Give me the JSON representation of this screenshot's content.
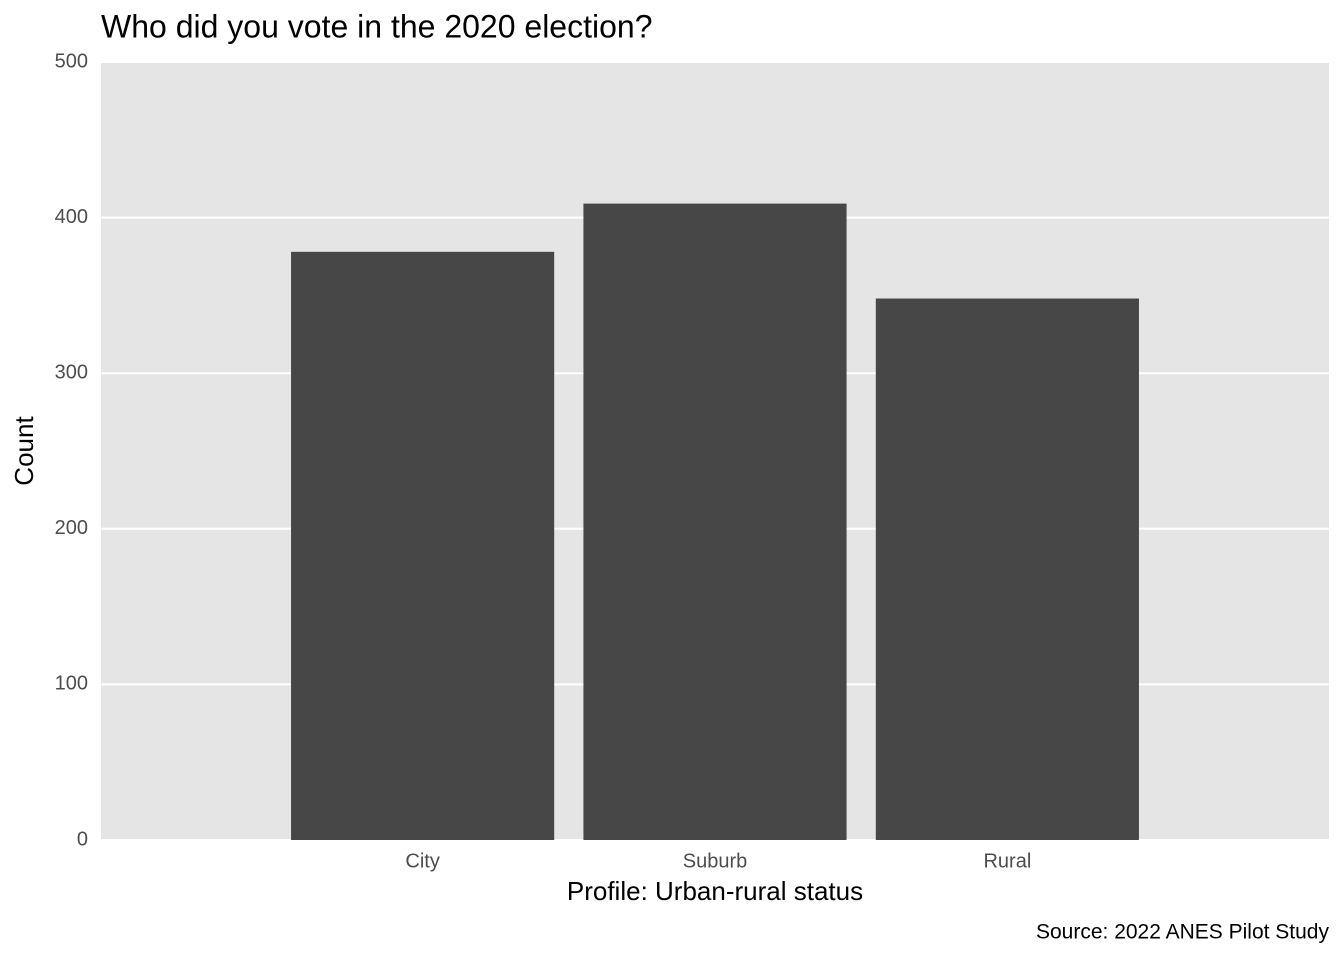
{
  "chart_data": {
    "type": "bar",
    "title": "Who did you vote in the 2020 election?",
    "x_label": "Profile: Urban-rural status",
    "y_label": "Count",
    "caption": "Source: 2022 ANES Pilot Study",
    "categories": [
      "City",
      "Suburb",
      "Rural"
    ],
    "values": [
      378,
      409,
      348
    ],
    "color": "#474747",
    "ylim": [
      0,
      500
    ],
    "yticks": [
      0,
      100,
      200,
      300,
      400,
      500
    ],
    "grid": true
  }
}
